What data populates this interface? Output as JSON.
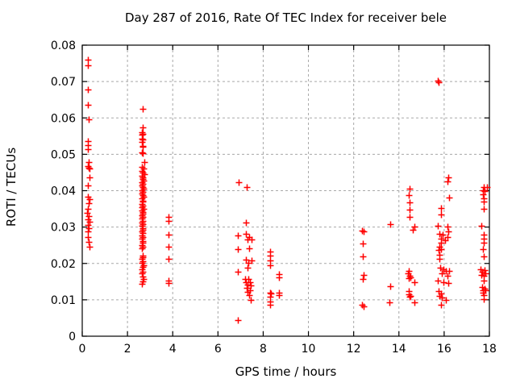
{
  "colors": {
    "marker": "#ff0000",
    "grid": "#a8a8a8",
    "axis": "#000000",
    "background": "#ffffff",
    "text": "#000000"
  },
  "chart_data": {
    "type": "scatter",
    "title": "Day 287 of 2016, Rate Of TEC Index for receiver bele",
    "xlabel": "GPS time / hours",
    "ylabel": "ROTI / TECUs",
    "xlim": [
      0,
      18
    ],
    "ylim": [
      0,
      0.08
    ],
    "xticks": [
      0,
      2,
      4,
      6,
      8,
      10,
      12,
      14,
      16,
      18
    ],
    "yticks": [
      0,
      0.01,
      0.02,
      0.03,
      0.04,
      0.05,
      0.06,
      0.07,
      0.08
    ],
    "grid": true,
    "legend": "none",
    "marker": "plus",
    "series": [
      {
        "name": "ROTI",
        "points": [
          [
            0.25,
            0.076
          ],
          [
            0.25,
            0.0744
          ],
          [
            0.25,
            0.0678
          ],
          [
            0.25,
            0.0637
          ],
          [
            0.29,
            0.0597
          ],
          [
            0.25,
            0.0536
          ],
          [
            0.25,
            0.0526
          ],
          [
            0.26,
            0.0515
          ],
          [
            0.28,
            0.0478
          ],
          [
            0.24,
            0.0467
          ],
          [
            0.28,
            0.0464
          ],
          [
            0.32,
            0.046
          ],
          [
            0.33,
            0.0437
          ],
          [
            0.25,
            0.0415
          ],
          [
            0.25,
            0.0384
          ],
          [
            0.33,
            0.0376
          ],
          [
            0.27,
            0.0366
          ],
          [
            0.25,
            0.035
          ],
          [
            0.23,
            0.0339
          ],
          [
            0.28,
            0.0331
          ],
          [
            0.25,
            0.0322
          ],
          [
            0.31,
            0.0315
          ],
          [
            0.24,
            0.0306
          ],
          [
            0.28,
            0.0297
          ],
          [
            0.25,
            0.0289
          ],
          [
            0.26,
            0.0273
          ],
          [
            0.28,
            0.0259
          ],
          [
            0.33,
            0.0246
          ],
          [
            2.66,
            0.0624
          ],
          [
            2.66,
            0.0574
          ],
          [
            2.62,
            0.056
          ],
          [
            2.68,
            0.0557
          ],
          [
            2.64,
            0.0554
          ],
          [
            2.63,
            0.0544
          ],
          [
            2.67,
            0.0541
          ],
          [
            2.62,
            0.0534
          ],
          [
            2.66,
            0.0524
          ],
          [
            2.69,
            0.052
          ],
          [
            2.62,
            0.0506
          ],
          [
            2.68,
            0.0503
          ],
          [
            2.76,
            0.0478
          ],
          [
            2.65,
            0.0466
          ],
          [
            2.7,
            0.046
          ],
          [
            2.64,
            0.0455
          ],
          [
            2.68,
            0.045
          ],
          [
            2.73,
            0.0446
          ],
          [
            2.63,
            0.0441
          ],
          [
            2.67,
            0.0437
          ],
          [
            2.66,
            0.0432
          ],
          [
            2.7,
            0.0428
          ],
          [
            2.64,
            0.0423
          ],
          [
            2.68,
            0.0419
          ],
          [
            2.62,
            0.0414
          ],
          [
            2.66,
            0.041
          ],
          [
            2.71,
            0.0405
          ],
          [
            2.65,
            0.0401
          ],
          [
            2.68,
            0.0396
          ],
          [
            2.63,
            0.0392
          ],
          [
            2.67,
            0.0387
          ],
          [
            2.7,
            0.0383
          ],
          [
            2.64,
            0.0378
          ],
          [
            2.66,
            0.0373
          ],
          [
            2.69,
            0.0369
          ],
          [
            2.63,
            0.0364
          ],
          [
            2.67,
            0.036
          ],
          [
            2.65,
            0.0355
          ],
          [
            2.7,
            0.035
          ],
          [
            2.64,
            0.0346
          ],
          [
            2.68,
            0.0341
          ],
          [
            2.66,
            0.0337
          ],
          [
            2.62,
            0.0332
          ],
          [
            2.67,
            0.0328
          ],
          [
            2.64,
            0.0323
          ],
          [
            2.69,
            0.0318
          ],
          [
            2.65,
            0.0313
          ],
          [
            2.67,
            0.0308
          ],
          [
            2.63,
            0.0303
          ],
          [
            2.68,
            0.0298
          ],
          [
            2.66,
            0.0293
          ],
          [
            2.64,
            0.0288
          ],
          [
            2.69,
            0.0283
          ],
          [
            2.65,
            0.0278
          ],
          [
            2.67,
            0.0273
          ],
          [
            2.63,
            0.0268
          ],
          [
            2.68,
            0.0262
          ],
          [
            2.66,
            0.0257
          ],
          [
            2.64,
            0.0251
          ],
          [
            2.67,
            0.0246
          ],
          [
            2.65,
            0.0241
          ],
          [
            2.66,
            0.0222
          ],
          [
            2.69,
            0.0217
          ],
          [
            2.64,
            0.0212
          ],
          [
            2.67,
            0.0207
          ],
          [
            2.65,
            0.0201
          ],
          [
            2.7,
            0.0196
          ],
          [
            2.66,
            0.019
          ],
          [
            2.63,
            0.0184
          ],
          [
            2.68,
            0.0178
          ],
          [
            2.65,
            0.0172
          ],
          [
            2.67,
            0.0165
          ],
          [
            2.7,
            0.0158
          ],
          [
            2.66,
            0.015
          ],
          [
            2.64,
            0.0143
          ],
          [
            3.81,
            0.0327
          ],
          [
            3.81,
            0.0318
          ],
          [
            3.81,
            0.028
          ],
          [
            3.81,
            0.0245
          ],
          [
            3.83,
            0.0212
          ],
          [
            3.8,
            0.0154
          ],
          [
            3.8,
            0.0146
          ],
          [
            6.92,
            0.0424
          ],
          [
            7.27,
            0.041
          ],
          [
            7.24,
            0.0313
          ],
          [
            7.24,
            0.0282
          ],
          [
            6.88,
            0.0277
          ],
          [
            7.39,
            0.0272
          ],
          [
            7.3,
            0.0265
          ],
          [
            7.48,
            0.0265
          ],
          [
            7.39,
            0.0241
          ],
          [
            6.88,
            0.0239
          ],
          [
            7.24,
            0.021
          ],
          [
            7.48,
            0.0208
          ],
          [
            7.36,
            0.0201
          ],
          [
            7.32,
            0.0188
          ],
          [
            6.88,
            0.0177
          ],
          [
            7.2,
            0.0158
          ],
          [
            7.35,
            0.0157
          ],
          [
            7.25,
            0.0149
          ],
          [
            7.42,
            0.0149
          ],
          [
            7.3,
            0.0141
          ],
          [
            7.45,
            0.014
          ],
          [
            7.28,
            0.0133
          ],
          [
            7.4,
            0.0126
          ],
          [
            7.32,
            0.0121
          ],
          [
            7.39,
            0.0112
          ],
          [
            7.44,
            0.0099
          ],
          [
            6.88,
            0.0044
          ],
          [
            8.32,
            0.0232
          ],
          [
            8.32,
            0.0222
          ],
          [
            8.32,
            0.0208
          ],
          [
            8.32,
            0.0194
          ],
          [
            8.7,
            0.0171
          ],
          [
            8.7,
            0.0161
          ],
          [
            8.3,
            0.012
          ],
          [
            8.34,
            0.0118
          ],
          [
            8.68,
            0.0119
          ],
          [
            8.68,
            0.0114
          ],
          [
            8.32,
            0.0108
          ],
          [
            8.32,
            0.0095
          ],
          [
            8.32,
            0.0086
          ],
          [
            12.38,
            0.029
          ],
          [
            12.43,
            0.0287
          ],
          [
            12.41,
            0.0254
          ],
          [
            12.41,
            0.0219
          ],
          [
            12.45,
            0.0169
          ],
          [
            12.41,
            0.0157
          ],
          [
            12.37,
            0.0086
          ],
          [
            12.43,
            0.0082
          ],
          [
            13.6,
            0.0308
          ],
          [
            13.6,
            0.0137
          ],
          [
            13.58,
            0.0093
          ],
          [
            14.47,
            0.0406
          ],
          [
            14.43,
            0.0387
          ],
          [
            14.47,
            0.0367
          ],
          [
            14.47,
            0.0347
          ],
          [
            14.47,
            0.0327
          ],
          [
            14.67,
            0.0302
          ],
          [
            14.63,
            0.0293
          ],
          [
            14.43,
            0.018
          ],
          [
            14.4,
            0.0173
          ],
          [
            14.48,
            0.0166
          ],
          [
            14.44,
            0.016
          ],
          [
            14.52,
            0.0161
          ],
          [
            14.67,
            0.0149
          ],
          [
            14.45,
            0.0123
          ],
          [
            14.42,
            0.0115
          ],
          [
            14.5,
            0.0111
          ],
          [
            14.47,
            0.0109
          ],
          [
            14.69,
            0.0093
          ],
          [
            15.72,
            0.0703
          ],
          [
            15.74,
            0.0698
          ],
          [
            15.86,
            0.0352
          ],
          [
            15.86,
            0.0334
          ],
          [
            15.72,
            0.0304
          ],
          [
            15.8,
            0.0282
          ],
          [
            15.92,
            0.028
          ],
          [
            15.86,
            0.0269
          ],
          [
            15.86,
            0.0258
          ],
          [
            15.78,
            0.0245
          ],
          [
            15.86,
            0.0239
          ],
          [
            15.75,
            0.0237
          ],
          [
            15.8,
            0.0223
          ],
          [
            15.78,
            0.0213
          ],
          [
            15.82,
            0.0188
          ],
          [
            15.98,
            0.0184
          ],
          [
            16.06,
            0.018
          ],
          [
            15.91,
            0.0173
          ],
          [
            15.71,
            0.0152
          ],
          [
            15.98,
            0.0149
          ],
          [
            15.77,
            0.0123
          ],
          [
            15.85,
            0.0117
          ],
          [
            15.8,
            0.011
          ],
          [
            15.91,
            0.0106
          ],
          [
            16.06,
            0.01
          ],
          [
            15.86,
            0.0086
          ],
          [
            16.18,
            0.0437
          ],
          [
            16.13,
            0.0426
          ],
          [
            16.21,
            0.0381
          ],
          [
            16.16,
            0.0301
          ],
          [
            16.19,
            0.0288
          ],
          [
            16.15,
            0.0272
          ],
          [
            16.04,
            0.0264
          ],
          [
            16.2,
            0.018
          ],
          [
            16.15,
            0.0166
          ],
          [
            16.17,
            0.0146
          ],
          [
            17.74,
            0.041
          ],
          [
            17.88,
            0.0411
          ],
          [
            17.7,
            0.0402
          ],
          [
            17.77,
            0.04
          ],
          [
            17.71,
            0.0391
          ],
          [
            17.74,
            0.038
          ],
          [
            17.74,
            0.0369
          ],
          [
            17.74,
            0.035
          ],
          [
            17.65,
            0.0304
          ],
          [
            17.74,
            0.028
          ],
          [
            17.76,
            0.0269
          ],
          [
            17.74,
            0.0258
          ],
          [
            17.71,
            0.0239
          ],
          [
            17.74,
            0.0219
          ],
          [
            17.62,
            0.0185
          ],
          [
            17.78,
            0.0182
          ],
          [
            17.68,
            0.0177
          ],
          [
            17.81,
            0.0173
          ],
          [
            17.66,
            0.0168
          ],
          [
            17.76,
            0.0166
          ],
          [
            17.74,
            0.0152
          ],
          [
            17.68,
            0.0135
          ],
          [
            17.78,
            0.013
          ],
          [
            17.72,
            0.0126
          ],
          [
            17.82,
            0.0126
          ],
          [
            17.7,
            0.0119
          ],
          [
            17.76,
            0.0113
          ],
          [
            17.74,
            0.0103
          ]
        ]
      }
    ]
  }
}
